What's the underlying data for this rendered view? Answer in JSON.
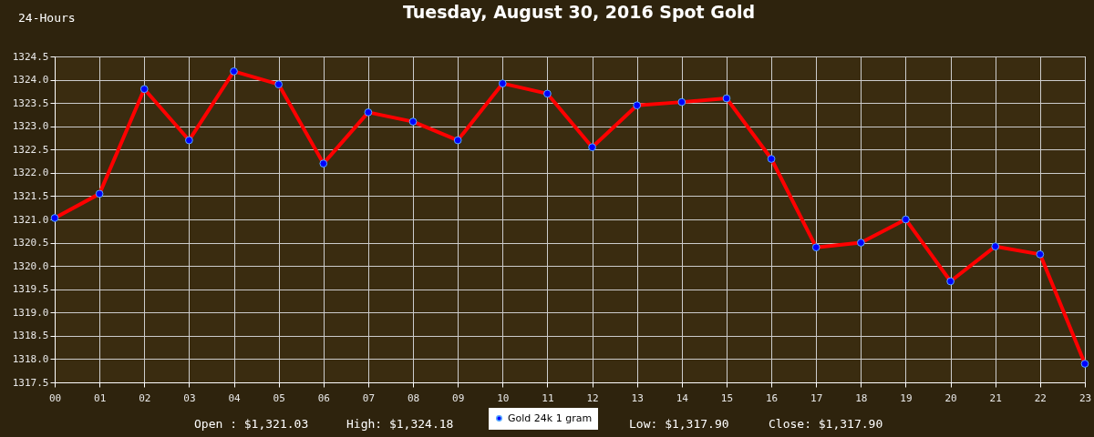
{
  "chart_data": {
    "type": "line",
    "title": "Tuesday, August 30, 2016 Spot Gold",
    "annotations": [
      "24-Hours",
      "Open : $1,321.03",
      "High: $1,324.18",
      "Low: $1,317.90",
      "Close: $1,317.90"
    ],
    "categories": [
      "00",
      "01",
      "02",
      "03",
      "04",
      "05",
      "06",
      "07",
      "08",
      "09",
      "10",
      "11",
      "12",
      "13",
      "14",
      "15",
      "16",
      "17",
      "18",
      "19",
      "20",
      "21",
      "22",
      "23"
    ],
    "series": [
      {
        "name": "Gold 24k 1 gram",
        "color": "#0000ff",
        "values": [
          1321.03,
          1321.55,
          1323.8,
          1322.7,
          1324.18,
          1323.9,
          1322.2,
          1323.3,
          1323.1,
          1322.7,
          1323.92,
          1323.7,
          1322.55,
          1323.45,
          1323.52,
          1323.6,
          1322.3,
          1320.4,
          1320.5,
          1321.0,
          1319.67,
          1320.42,
          1320.25,
          1317.9
        ]
      }
    ],
    "ylim": [
      1317.5,
      1324.5
    ],
    "yticks": [
      {
        "value": 1317.5,
        "label": "1317.5"
      },
      {
        "value": 1318,
        "label": "1318.0"
      },
      {
        "value": 1318.5,
        "label": "1318.5"
      },
      {
        "value": 1319,
        "label": "1319.0"
      },
      {
        "value": 1319.5,
        "label": "1319.5"
      },
      {
        "value": 1320,
        "label": "1320.0"
      },
      {
        "value": 1320.5,
        "label": "1320.5"
      },
      {
        "value": 1321,
        "label": "1321.0"
      },
      {
        "value": 1321.5,
        "label": "1321.5"
      },
      {
        "value": 1322,
        "label": "1322.0"
      },
      {
        "value": 1322.5,
        "label": "1322.5"
      },
      {
        "value": 1323,
        "label": "1323.0"
      },
      {
        "value": 1323.5,
        "label": "1323.5"
      },
      {
        "value": 1324,
        "label": "1324.0"
      },
      {
        "value": 1324.5,
        "label": "1324.5"
      }
    ],
    "grid": true,
    "legend": "bottom",
    "marker": "circle",
    "line_style": "solid"
  }
}
